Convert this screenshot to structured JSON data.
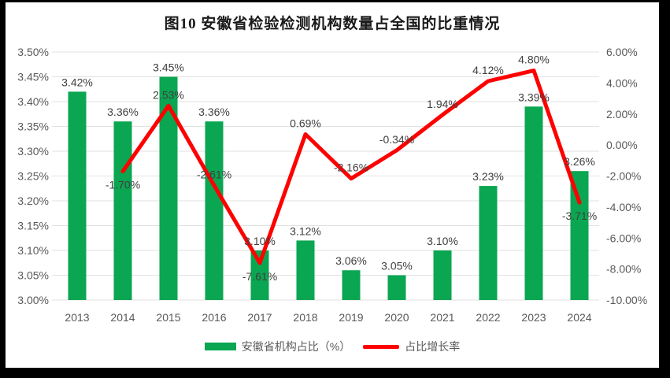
{
  "title": "图10 安徽省检验检测机构数量占全国的比重情况",
  "colors": {
    "frame": "#000000",
    "background": "#ffffff",
    "bar": "#0aa652",
    "line": "#fe0000",
    "gridline": "#e2e2e2",
    "tick_text": "#595959",
    "label_text": "#404040",
    "title_text": "#1a1a1a"
  },
  "chart_data": {
    "type": "combo (bar + line, dual axis)",
    "title": "图10 安徽省检验检测机构数量占全国的比重情况",
    "categories": [
      "2013",
      "2014",
      "2015",
      "2016",
      "2017",
      "2018",
      "2019",
      "2020",
      "2021",
      "2022",
      "2023",
      "2024"
    ],
    "series": [
      {
        "name": "安徽省机构占比（%）",
        "type": "bar",
        "axis": "left",
        "color": "#0aa652",
        "values": [
          3.42,
          3.36,
          3.45,
          3.36,
          3.1,
          3.12,
          3.06,
          3.05,
          3.1,
          3.23,
          3.39,
          3.26
        ],
        "labels": [
          "3.42%",
          "3.36%",
          "3.45%",
          "3.36%",
          "3.10%",
          "3.12%",
          "3.06%",
          "3.05%",
          "3.10%",
          "3.23%",
          "3.39%",
          "3.26%"
        ]
      },
      {
        "name": "占比增长率",
        "type": "line",
        "axis": "right",
        "color": "#fe0000",
        "values": [
          null,
          -1.7,
          2.53,
          -2.61,
          -7.61,
          0.69,
          -2.16,
          -0.34,
          1.94,
          4.12,
          4.8,
          -3.71
        ],
        "labels": [
          null,
          "-1.70%",
          "2.53%",
          "-2.61%",
          "-7.61%",
          "0.69%",
          "-2.16%",
          "-0.34%",
          "1.94%",
          "4.12%",
          "4.80%",
          "-3.71%"
        ],
        "label_placement": [
          null,
          "below",
          "above",
          "above",
          "below",
          "above",
          "above",
          "above",
          "above",
          "above",
          "above",
          "below"
        ]
      }
    ],
    "left_axis": {
      "min": 3.0,
      "max": 3.5,
      "step": 0.05,
      "tick_labels": [
        "3.00%",
        "3.05%",
        "3.10%",
        "3.15%",
        "3.20%",
        "3.25%",
        "3.30%",
        "3.35%",
        "3.40%",
        "3.45%",
        "3.50%"
      ]
    },
    "right_axis": {
      "min": -10,
      "max": 6,
      "step": 2,
      "tick_labels": [
        "-10.00%",
        "-8.00%",
        "-6.00%",
        "-4.00%",
        "-2.00%",
        "0.00%",
        "2.00%",
        "4.00%",
        "6.00%"
      ]
    },
    "grid": "horizontal only",
    "legend_position": "bottom"
  },
  "legend": {
    "items": [
      {
        "label": "安徽省机构占比（%）",
        "swatch": "bar"
      },
      {
        "label": "占比增长率",
        "swatch": "line"
      }
    ]
  }
}
